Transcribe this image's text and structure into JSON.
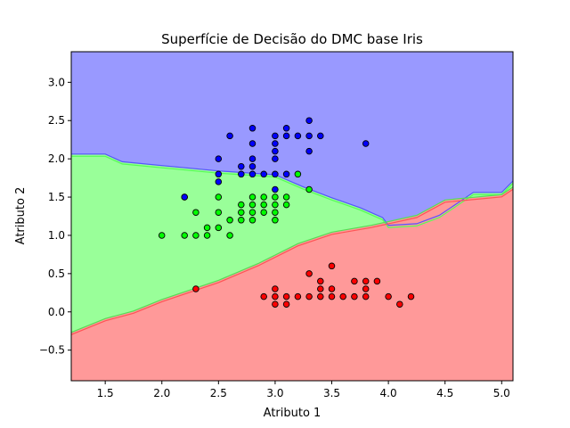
{
  "chart_data": {
    "type": "scatter",
    "title": "Superfície de Decisão do DMC base Iris",
    "xlabel": "Atributo 1",
    "ylabel": "Atributo 2",
    "xlim": [
      1.2,
      5.1
    ],
    "ylim": [
      -0.9,
      3.4
    ],
    "xticks": [
      1.5,
      2.0,
      2.5,
      3.0,
      3.5,
      4.0,
      4.5,
      5.0
    ],
    "xtick_labels": [
      "1.5",
      "2.0",
      "2.5",
      "3.0",
      "3.5",
      "4.0",
      "4.5",
      "5.0"
    ],
    "yticks": [
      -0.5,
      0.0,
      0.5,
      1.0,
      1.5,
      2.0,
      2.5,
      3.0
    ],
    "ytick_labels": [
      "−0.5",
      "0.0",
      "0.5",
      "1.0",
      "1.5",
      "2.0",
      "2.5",
      "3.0"
    ],
    "grid": false,
    "regions": [
      {
        "color": "#9999ff",
        "upper": [
          [
            1.2,
            3.4
          ],
          [
            5.1,
            3.4
          ]
        ],
        "lower": [
          [
            1.2,
            2.05
          ],
          [
            1.5,
            2.05
          ],
          [
            1.65,
            1.95
          ],
          [
            2.0,
            1.9
          ],
          [
            2.5,
            1.83
          ],
          [
            3.0,
            1.78
          ],
          [
            3.25,
            1.62
          ],
          [
            3.5,
            1.48
          ],
          [
            3.75,
            1.35
          ],
          [
            3.95,
            1.22
          ],
          [
            4.0,
            1.12
          ],
          [
            4.25,
            1.14
          ],
          [
            4.45,
            1.25
          ],
          [
            4.75,
            1.55
          ],
          [
            5.0,
            1.55
          ],
          [
            5.1,
            1.7
          ]
        ]
      },
      {
        "color": "#99ff99",
        "upper": [
          [
            1.2,
            2.05
          ],
          [
            1.5,
            2.05
          ],
          [
            1.65,
            1.95
          ],
          [
            2.0,
            1.9
          ],
          [
            2.5,
            1.83
          ],
          [
            3.0,
            1.78
          ],
          [
            3.25,
            1.62
          ],
          [
            3.5,
            1.48
          ],
          [
            3.75,
            1.35
          ],
          [
            3.95,
            1.22
          ],
          [
            4.0,
            1.12
          ],
          [
            4.25,
            1.14
          ],
          [
            4.45,
            1.25
          ],
          [
            4.75,
            1.55
          ],
          [
            5.0,
            1.55
          ],
          [
            5.1,
            1.7
          ]
        ],
        "lower": [
          [
            1.2,
            -0.28
          ],
          [
            1.5,
            -0.1
          ],
          [
            1.75,
            0.0
          ],
          [
            2.0,
            0.15
          ],
          [
            2.5,
            0.4
          ],
          [
            2.85,
            0.62
          ],
          [
            3.2,
            0.88
          ],
          [
            3.5,
            1.03
          ],
          [
            3.85,
            1.12
          ],
          [
            4.25,
            1.25
          ],
          [
            4.5,
            1.45
          ],
          [
            5.0,
            1.52
          ],
          [
            5.1,
            1.62
          ]
        ]
      },
      {
        "color": "#ff9999",
        "upper": [
          [
            1.2,
            -0.28
          ],
          [
            1.5,
            -0.1
          ],
          [
            1.75,
            0.0
          ],
          [
            2.0,
            0.15
          ],
          [
            2.5,
            0.4
          ],
          [
            2.85,
            0.62
          ],
          [
            3.2,
            0.88
          ],
          [
            3.5,
            1.03
          ],
          [
            3.85,
            1.12
          ],
          [
            4.25,
            1.25
          ],
          [
            4.5,
            1.45
          ],
          [
            5.0,
            1.52
          ],
          [
            5.1,
            1.62
          ]
        ],
        "lower": [
          [
            1.2,
            -0.9
          ],
          [
            5.1,
            -0.9
          ]
        ]
      }
    ],
    "series": [
      {
        "color": "#ff0000",
        "points": [
          [
            2.3,
            0.3
          ],
          [
            2.9,
            0.2
          ],
          [
            3.0,
            0.2
          ],
          [
            3.0,
            0.3
          ],
          [
            3.0,
            0.1
          ],
          [
            3.1,
            0.2
          ],
          [
            3.1,
            0.1
          ],
          [
            3.2,
            0.2
          ],
          [
            3.3,
            0.2
          ],
          [
            3.3,
            0.5
          ],
          [
            3.4,
            0.2
          ],
          [
            3.4,
            0.3
          ],
          [
            3.4,
            0.4
          ],
          [
            3.5,
            0.2
          ],
          [
            3.5,
            0.3
          ],
          [
            3.5,
            0.6
          ],
          [
            3.6,
            0.2
          ],
          [
            3.7,
            0.2
          ],
          [
            3.7,
            0.4
          ],
          [
            3.8,
            0.2
          ],
          [
            3.8,
            0.3
          ],
          [
            3.8,
            0.4
          ],
          [
            3.9,
            0.4
          ],
          [
            4.0,
            0.2
          ],
          [
            4.1,
            0.1
          ],
          [
            4.2,
            0.2
          ]
        ]
      },
      {
        "color": "#00ff00",
        "points": [
          [
            2.0,
            1.0
          ],
          [
            2.2,
            1.0
          ],
          [
            2.2,
            1.5
          ],
          [
            2.3,
            1.3
          ],
          [
            2.3,
            1.0
          ],
          [
            2.4,
            1.0
          ],
          [
            2.4,
            1.1
          ],
          [
            2.5,
            1.1
          ],
          [
            2.5,
            1.3
          ],
          [
            2.5,
            1.5
          ],
          [
            2.6,
            1.0
          ],
          [
            2.6,
            1.2
          ],
          [
            2.7,
            1.2
          ],
          [
            2.7,
            1.3
          ],
          [
            2.7,
            1.4
          ],
          [
            2.8,
            1.2
          ],
          [
            2.8,
            1.3
          ],
          [
            2.8,
            1.4
          ],
          [
            2.8,
            1.5
          ],
          [
            2.9,
            1.3
          ],
          [
            2.9,
            1.4
          ],
          [
            2.9,
            1.5
          ],
          [
            3.0,
            1.2
          ],
          [
            3.0,
            1.3
          ],
          [
            3.0,
            1.4
          ],
          [
            3.0,
            1.5
          ],
          [
            3.1,
            1.4
          ],
          [
            3.1,
            1.5
          ],
          [
            3.2,
            1.8
          ],
          [
            3.3,
            1.6
          ]
        ]
      },
      {
        "color": "#0000ff",
        "points": [
          [
            2.2,
            1.5
          ],
          [
            2.5,
            1.7
          ],
          [
            2.5,
            1.8
          ],
          [
            2.5,
            2.0
          ],
          [
            2.6,
            2.3
          ],
          [
            2.7,
            1.8
          ],
          [
            2.7,
            1.9
          ],
          [
            2.8,
            1.8
          ],
          [
            2.8,
            1.9
          ],
          [
            2.8,
            2.0
          ],
          [
            2.8,
            2.2
          ],
          [
            2.8,
            2.4
          ],
          [
            2.9,
            1.8
          ],
          [
            3.0,
            1.6
          ],
          [
            3.0,
            1.8
          ],
          [
            3.0,
            2.0
          ],
          [
            3.0,
            2.1
          ],
          [
            3.0,
            2.2
          ],
          [
            3.0,
            2.3
          ],
          [
            3.1,
            1.8
          ],
          [
            3.1,
            2.3
          ],
          [
            3.1,
            2.4
          ],
          [
            3.2,
            2.3
          ],
          [
            3.3,
            2.1
          ],
          [
            3.3,
            2.3
          ],
          [
            3.3,
            2.5
          ],
          [
            3.4,
            2.3
          ],
          [
            3.8,
            2.2
          ]
        ]
      }
    ]
  }
}
